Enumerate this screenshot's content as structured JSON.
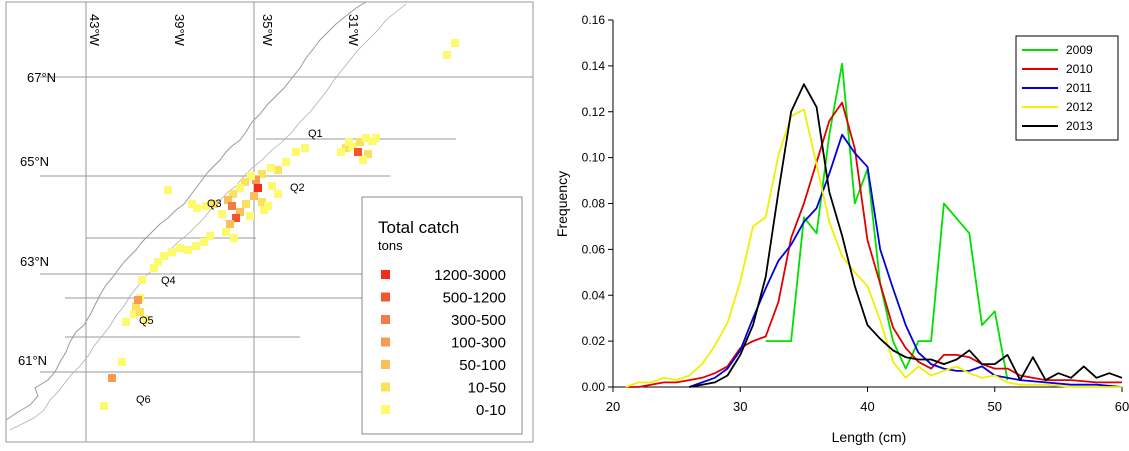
{
  "map": {
    "lon_labels": [
      "43°W",
      "39°W",
      "35°W",
      "31°W"
    ],
    "lat_labels": [
      "67°N",
      "65°N",
      "63°N",
      "61°N"
    ],
    "area_labels": [
      "Q1",
      "Q2",
      "Q3",
      "Q4",
      "Q5",
      "Q6"
    ],
    "legend": {
      "title": "Total catch",
      "unit": "tons",
      "classes": [
        {
          "label": "1200-3000",
          "color": "#f22c16"
        },
        {
          "label": "500-1200",
          "color": "#f4542c"
        },
        {
          "label": "300-500",
          "color": "#f57a48"
        },
        {
          "label": "100-300",
          "color": "#f69b55"
        },
        {
          "label": "50-100",
          "color": "#f9c05a"
        },
        {
          "label": "10-50",
          "color": "#fce15c"
        },
        {
          "label": "0-10",
          "color": "#fdfa6e"
        }
      ]
    }
  },
  "chart_data": {
    "type": "line",
    "xlabel": "Length (cm)",
    "ylabel": "Frequency",
    "xlim": [
      20,
      60
    ],
    "ylim": [
      0,
      0.16
    ],
    "xticks": [
      20,
      30,
      40,
      50,
      60
    ],
    "yticks": [
      0.0,
      0.02,
      0.04,
      0.06,
      0.08,
      0.1,
      0.12,
      0.14,
      0.16
    ],
    "ytick_labels": [
      "0.00",
      "0.02",
      "0.04",
      "0.06",
      "0.08",
      "0.10",
      "0.12",
      "0.14",
      "0.16"
    ],
    "legend_position": "top-right",
    "grid": false,
    "series": [
      {
        "name": "2009",
        "color": "#00e000",
        "x": [
          32,
          34,
          35,
          36,
          37,
          38,
          39,
          40,
          41,
          42,
          43,
          44,
          45,
          46,
          48,
          49,
          50,
          51
        ],
        "y": [
          0.02,
          0.02,
          0.074,
          0.067,
          0.11,
          0.141,
          0.08,
          0.095,
          0.045,
          0.02,
          0.008,
          0.02,
          0.02,
          0.08,
          0.067,
          0.027,
          0.033,
          0.003
        ]
      },
      {
        "name": "2010",
        "color": "#e00000",
        "x": [
          21,
          22,
          24,
          25,
          26,
          27,
          28,
          29,
          30,
          31,
          32,
          33,
          34,
          35,
          36,
          37,
          38,
          39,
          40,
          41,
          42,
          43,
          44,
          45,
          46,
          47,
          48,
          49,
          50,
          51,
          52,
          54,
          56,
          58,
          60
        ],
        "y": [
          0.0,
          0.0,
          0.002,
          0.002,
          0.003,
          0.004,
          0.006,
          0.009,
          0.017,
          0.02,
          0.022,
          0.037,
          0.065,
          0.08,
          0.098,
          0.116,
          0.124,
          0.104,
          0.064,
          0.045,
          0.026,
          0.017,
          0.011,
          0.008,
          0.014,
          0.014,
          0.013,
          0.01,
          0.008,
          0.008,
          0.005,
          0.003,
          0.003,
          0.002,
          0.002
        ]
      },
      {
        "name": "2011",
        "color": "#0000e0",
        "x": [
          26,
          27,
          28,
          29,
          30,
          31,
          32,
          33,
          34,
          35,
          36,
          37,
          38,
          39,
          40,
          41,
          42,
          43,
          44,
          45,
          46,
          47,
          48,
          49,
          50,
          52,
          54,
          56,
          58,
          60
        ],
        "y": [
          0.0,
          0.002,
          0.004,
          0.008,
          0.016,
          0.03,
          0.043,
          0.055,
          0.062,
          0.072,
          0.078,
          0.093,
          0.11,
          0.102,
          0.096,
          0.06,
          0.043,
          0.027,
          0.015,
          0.01,
          0.008,
          0.007,
          0.007,
          0.009,
          0.005,
          0.003,
          0.002,
          0.001,
          0.001,
          0.0
        ]
      },
      {
        "name": "2012",
        "color": "#f0f000",
        "x": [
          21,
          22,
          23,
          24,
          25,
          26,
          27,
          28,
          29,
          30,
          31,
          32,
          33,
          34,
          35,
          36,
          37,
          38,
          39,
          40,
          41,
          42,
          43,
          44,
          45,
          46,
          47,
          48,
          49,
          50,
          51,
          52,
          54,
          56,
          58,
          60
        ],
        "y": [
          0.0,
          0.002,
          0.002,
          0.004,
          0.003,
          0.005,
          0.01,
          0.018,
          0.028,
          0.046,
          0.07,
          0.074,
          0.101,
          0.118,
          0.121,
          0.097,
          0.072,
          0.057,
          0.05,
          0.044,
          0.029,
          0.011,
          0.004,
          0.009,
          0.005,
          0.007,
          0.009,
          0.006,
          0.004,
          0.005,
          0.002,
          0.001,
          0.001,
          0.0,
          0.0,
          0.0
        ]
      },
      {
        "name": "2013",
        "color": "#000000",
        "x": [
          26,
          27,
          28,
          29,
          30,
          31,
          32,
          33,
          34,
          35,
          36,
          37,
          38,
          39,
          40,
          41,
          42,
          43,
          44,
          45,
          46,
          47,
          48,
          49,
          50,
          51,
          52,
          53,
          54,
          55,
          56,
          57,
          58,
          59,
          60
        ],
        "y": [
          0.0,
          0.001,
          0.002,
          0.005,
          0.014,
          0.027,
          0.048,
          0.085,
          0.12,
          0.132,
          0.122,
          0.085,
          0.066,
          0.044,
          0.027,
          0.021,
          0.016,
          0.013,
          0.012,
          0.012,
          0.01,
          0.012,
          0.016,
          0.01,
          0.01,
          0.014,
          0.003,
          0.013,
          0.003,
          0.006,
          0.004,
          0.009,
          0.004,
          0.006,
          0.004
        ]
      }
    ]
  }
}
